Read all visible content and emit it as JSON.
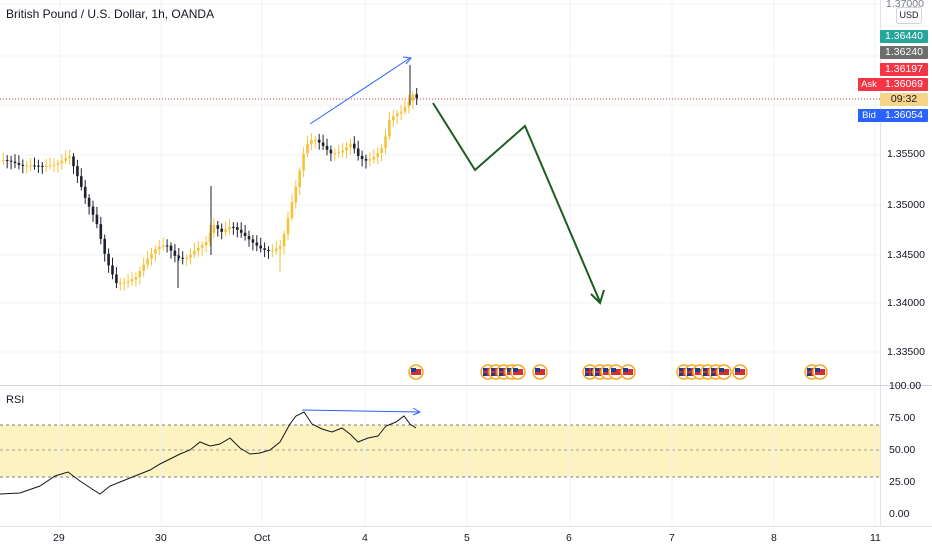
{
  "chart_title": "British Pound / U.S. Dollar, 1h, OANDA",
  "currency_button": "USD",
  "price_axis": {
    "top_partial": "1.37000",
    "ticks": [
      "1.35500",
      "1.35000",
      "1.34500",
      "1.34000",
      "1.33500"
    ]
  },
  "price_tags": {
    "high": "1.36440",
    "mid": "1.36240",
    "ask_red": "1.36197",
    "ask": "1.36069",
    "countdown": "09:32",
    "bid": "1.36054"
  },
  "side_labels": {
    "ask": "Ask",
    "bid": "Bid"
  },
  "rsi": {
    "title": "RSI",
    "ticks": [
      "100.00",
      "75.00",
      "50.00",
      "25.00",
      "0.00"
    ]
  },
  "time_axis": [
    "29",
    "30",
    "Oct",
    "4",
    "5",
    "6",
    "7",
    "8",
    "11"
  ],
  "colors": {
    "bull": "#f5c33b",
    "bear": "#1e222d",
    "arrow": "#1b5e20",
    "annotation_line": "#2962ff",
    "rsi_band": "#fdf3c0",
    "tag_green": "#26a69a",
    "tag_grey": "#6d6d6d",
    "tag_red": "#f23645",
    "tag_blue": "#2962ff",
    "tag_orange": "#f6a623"
  },
  "icons": [
    "us-flag-event-icon",
    "gb-flag-event-icon"
  ]
}
